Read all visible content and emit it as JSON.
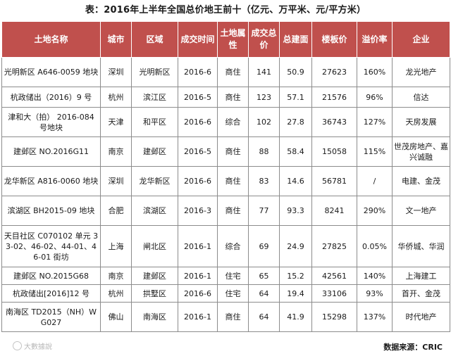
{
  "title": "表：2016年上半年全国总价地王前十（亿元、万平米、元/平方米）",
  "columns": [
    "土地名称",
    "城市",
    "区域",
    "成交时间",
    "土地属性",
    "成交总价",
    "总建面",
    "楼板价",
    "溢价率",
    "企业"
  ],
  "rows": [
    [
      "光明新区 A646-0059 地块",
      "深圳",
      "光明新区",
      "2016-6",
      "商住",
      "141",
      "50.9",
      "27623",
      "160%",
      "龙光地产"
    ],
    [
      "杭政储出（2016）9 号",
      "杭州",
      "滨江区",
      "2016-5",
      "商住",
      "123",
      "57.1",
      "21576",
      "96%",
      "信达"
    ],
    [
      "津和大（拍） 2016-084 号地块",
      "天津",
      "和平区",
      "2016-6",
      "综合",
      "102",
      "27.8",
      "36743",
      "127%",
      "天房发展"
    ],
    [
      "建邺区 NO.2016G11",
      "南京",
      "建邺区",
      "2016-5",
      "商住",
      "88",
      "58.4",
      "15058",
      "115%",
      "世茂房地产、嘉兴诚融"
    ],
    [
      "龙华新区 A816-0060 地块",
      "深圳",
      "龙华新区",
      "2016-6",
      "商住",
      "83",
      "14.6",
      "56781",
      "/",
      "电建、金茂"
    ],
    [
      "滨湖区 BH2015-09 地块",
      "合肥",
      "滨湖区",
      "2016-3",
      "商住",
      "77",
      "93.3",
      "8241",
      "290%",
      "文一地产"
    ],
    [
      "天目社区 C070102 单元 33-02、46-02、44-01、46-01 街坊",
      "上海",
      "闸北区",
      "2016-1",
      "综合",
      "69",
      "24.9",
      "27825",
      "0.05%",
      "华侨城、华润"
    ],
    [
      "建邺区 NO.2015G68",
      "南京",
      "建邺区",
      "2016-1",
      "住宅",
      "65",
      "15.2",
      "42561",
      "140%",
      "上海建工"
    ],
    [
      "杭政储出[2016]12 号",
      "杭州",
      "拱墅区",
      "2016-6",
      "住宅",
      "64",
      "19.4",
      "33106",
      "93%",
      "首开、金茂"
    ],
    [
      "南海区 TD2015（NH）WG027",
      "佛山",
      "南海区",
      "2016-1",
      "商住",
      "64",
      "41.9",
      "15298",
      "137%",
      "时代地产"
    ]
  ],
  "source": "数据来源：CRIC",
  "watermark": "大數據說",
  "colors": {
    "header_bg": "#c0504d",
    "header_text": "#ffffff",
    "border": "#8c8c8c"
  }
}
